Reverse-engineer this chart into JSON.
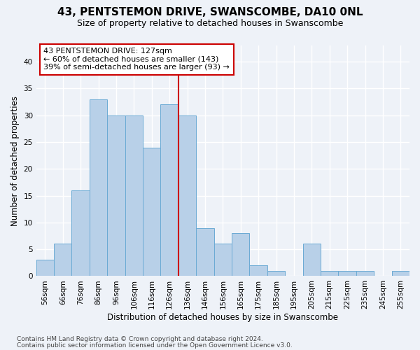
{
  "title": "43, PENTSTEMON DRIVE, SWANSCOMBE, DA10 0NL",
  "subtitle": "Size of property relative to detached houses in Swanscombe",
  "xlabel": "Distribution of detached houses by size in Swanscombe",
  "ylabel": "Number of detached properties",
  "bins": [
    "56sqm",
    "66sqm",
    "76sqm",
    "86sqm",
    "96sqm",
    "106sqm",
    "116sqm",
    "126sqm",
    "136sqm",
    "146sqm",
    "156sqm",
    "165sqm",
    "175sqm",
    "185sqm",
    "195sqm",
    "205sqm",
    "215sqm",
    "225sqm",
    "235sqm",
    "245sqm",
    "255sqm"
  ],
  "values": [
    3,
    6,
    16,
    33,
    30,
    30,
    24,
    32,
    30,
    9,
    6,
    8,
    2,
    1,
    0,
    6,
    1,
    1,
    1,
    0,
    1
  ],
  "bar_color": "#b8d0e8",
  "bar_edge_color": "#6aaad4",
  "property_line_x": 7.5,
  "annotation_text": "43 PENTSTEMON DRIVE: 127sqm\n← 60% of detached houses are smaller (143)\n39% of semi-detached houses are larger (93) →",
  "annotation_box_color": "#ffffff",
  "annotation_box_edge_color": "#cc0000",
  "vline_color": "#cc0000",
  "ylim": [
    0,
    43
  ],
  "yticks": [
    0,
    5,
    10,
    15,
    20,
    25,
    30,
    35,
    40
  ],
  "background_color": "#eef2f8",
  "grid_color": "#ffffff",
  "footer_line1": "Contains HM Land Registry data © Crown copyright and database right 2024.",
  "footer_line2": "Contains public sector information licensed under the Open Government Licence v3.0.",
  "title_fontsize": 11,
  "subtitle_fontsize": 9,
  "xlabel_fontsize": 8.5,
  "ylabel_fontsize": 8.5,
  "tick_fontsize": 7.5,
  "annotation_fontsize": 8,
  "footer_fontsize": 6.5
}
